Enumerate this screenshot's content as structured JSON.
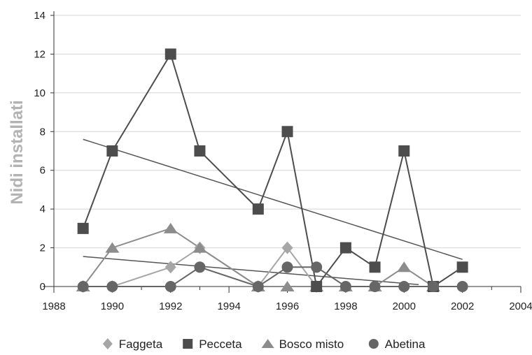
{
  "chart_data": {
    "type": "line",
    "title": "",
    "xlabel": "",
    "ylabel": "Nidi installati",
    "xlim": [
      1988,
      2004
    ],
    "ylim": [
      0,
      14
    ],
    "xticks": [
      1988,
      1990,
      1992,
      1994,
      1996,
      1998,
      2000,
      2002,
      2004
    ],
    "yticks": [
      0,
      2,
      4,
      6,
      8,
      10,
      12,
      14
    ],
    "grid": "horizontal",
    "legend_position": "bottom",
    "series": [
      {
        "name": "Faggeta",
        "marker": "diamond",
        "color": "#a6a6a6",
        "x": [
          1989,
          1990,
          1992,
          1993,
          1995,
          1996,
          1997
        ],
        "y": [
          0,
          0,
          1,
          2,
          0,
          2,
          0
        ]
      },
      {
        "name": "Pecceta",
        "marker": "square",
        "color": "#4d4d4d",
        "x": [
          1989,
          1990,
          1992,
          1993,
          1995,
          1996,
          1997,
          1998,
          1999,
          2000,
          2001,
          2002
        ],
        "y": [
          3,
          7,
          12,
          7,
          4,
          8,
          0,
          2,
          1,
          7,
          0,
          1
        ]
      },
      {
        "name": "Bosco misto",
        "marker": "triangle",
        "color": "#8c8c8c",
        "x": [
          1989,
          1990,
          1992,
          1993,
          1995,
          1996,
          1997,
          1998,
          1999,
          2000,
          2001
        ],
        "y": [
          0,
          2,
          3,
          2,
          0,
          0,
          0,
          0,
          0,
          1,
          0
        ]
      },
      {
        "name": "Abetina",
        "marker": "circle",
        "color": "#666666",
        "x": [
          1989,
          1990,
          1992,
          1993,
          1995,
          1996,
          1997,
          1998,
          1999,
          2000,
          2001,
          2002
        ],
        "y": [
          0,
          0,
          0,
          1,
          0,
          1,
          1,
          0,
          0,
          0,
          0,
          0
        ]
      }
    ],
    "trendlines": [
      {
        "x": [
          1989,
          2002
        ],
        "y": [
          7.6,
          1.4
        ],
        "color": "#555555"
      },
      {
        "x": [
          1989,
          2000.5
        ],
        "y": [
          1.55,
          0.1
        ],
        "color": "#555555"
      }
    ]
  }
}
